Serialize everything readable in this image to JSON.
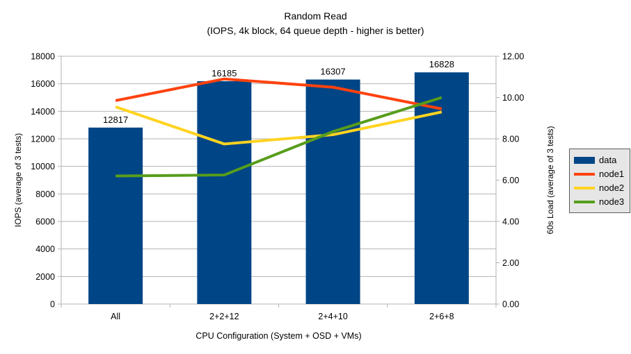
{
  "chart_data": {
    "type": "bar",
    "combo": "bar+line",
    "title": "Random Read",
    "subtitle": "(IOPS, 4k block, 64 queue depth - higher is better)",
    "categories": [
      "All",
      "2+2+12",
      "2+4+10",
      "2+6+8"
    ],
    "series": [
      {
        "name": "data",
        "type": "bar",
        "axis": "left",
        "color": "#004586",
        "values": [
          12817,
          16185,
          16307,
          16828
        ]
      },
      {
        "name": "node1",
        "type": "line",
        "axis": "right",
        "color": "#FF420E",
        "values": [
          9.85,
          10.9,
          10.5,
          9.45
        ]
      },
      {
        "name": "node2",
        "type": "line",
        "axis": "right",
        "color": "#FFD320",
        "values": [
          9.55,
          7.75,
          8.2,
          9.3
        ]
      },
      {
        "name": "node3",
        "type": "line",
        "axis": "right",
        "color": "#579D1C",
        "values": [
          6.2,
          6.25,
          8.35,
          10.0
        ]
      }
    ],
    "axes": {
      "left": {
        "label": "IOPS (average of 3 tests)",
        "min": 0,
        "max": 18000,
        "step": 2000,
        "format": "int"
      },
      "right": {
        "label": "60s Load (average of 3 tests)",
        "min": 0,
        "max": 12,
        "step": 2,
        "format": "2dp"
      },
      "x": {
        "label": "CPU Configuration (System + OSD + VMs)",
        "categories": [
          "All",
          "2+2+12",
          "2+4+10",
          "2+6+8"
        ]
      }
    },
    "grid": true,
    "legend_position": "right",
    "colors": {
      "grid": "#b3b3b3",
      "axis": "#b3b3b3",
      "text": "#000000",
      "bar": "#004586",
      "node1": "#FF420E",
      "node2": "#FFD320",
      "node3": "#579D1C",
      "legend_bg": "#e6e6e6",
      "legend_border": "#595959",
      "background": "#ffffff"
    }
  }
}
